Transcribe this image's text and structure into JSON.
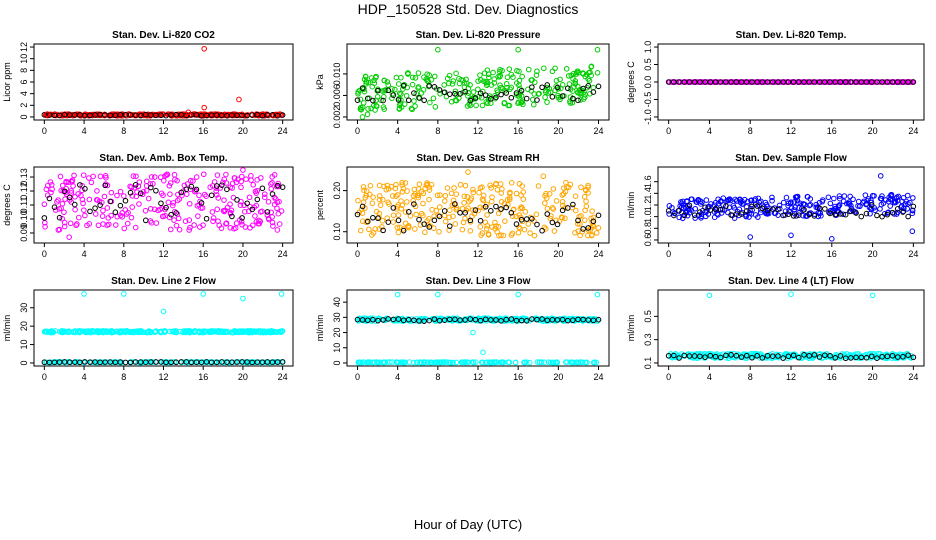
{
  "title": "HDP_150528  Std. Dev. Diagnostics",
  "xlabel_common": "Hour of Day (UTC)",
  "colors": {
    "red": "#ff0000",
    "green": "#00cc00",
    "magenta": "#ff00ff",
    "orange": "#ffa500",
    "blue": "#0000ff",
    "cyan": "#00ffff",
    "black": "#000000"
  },
  "chart_data": [
    {
      "type": "scatter",
      "title": "Stan. Dev. Li-820 CO2",
      "ylabel": "Licor ppm",
      "xlim": [
        0,
        24
      ],
      "xticks": [
        "0",
        "4",
        "8",
        "12",
        "16",
        "20",
        "24"
      ],
      "ylim": [
        0,
        12
      ],
      "yticks": [
        "0",
        "2",
        "4",
        "6",
        "8",
        "10",
        "12"
      ],
      "color": "#ff0000",
      "band": {
        "lo": 0.2,
        "hi": 0.5
      },
      "black_band": {
        "lo": 0.2,
        "hi": 0.4
      },
      "outliers": [
        [
          16.1,
          11.7
        ],
        [
          16.1,
          1.6
        ],
        [
          19.6,
          3.0
        ],
        [
          14.5,
          0.8
        ],
        [
          0.3,
          0.5
        ]
      ]
    },
    {
      "type": "scatter",
      "title": "Stan. Dev. Li-820 Pressure",
      "ylabel": "kPa",
      "xlim": [
        0,
        24
      ],
      "xticks": [
        "0",
        "4",
        "8",
        "12",
        "16",
        "20",
        "24"
      ],
      "ylim": [
        0.002,
        0.015
      ],
      "yticks": [
        "0.002",
        "0.006",
        "0.010"
      ],
      "ytick_values": [
        0.002,
        0.006,
        0.01
      ],
      "color": "#00cc00",
      "band": {
        "lo": 0.003,
        "hi": 0.01
      },
      "black_band": {
        "lo": 0.005,
        "hi": 0.008
      },
      "outliers": [
        [
          8.0,
          0.0145
        ],
        [
          16.0,
          0.0145
        ],
        [
          23.9,
          0.0145
        ],
        [
          0.5,
          0.002
        ],
        [
          1.0,
          0.0025
        ]
      ]
    },
    {
      "type": "scatter",
      "title": "Stan. Dev. Li-820 Temp.",
      "ylabel": "degrees C",
      "xlim": [
        0,
        24
      ],
      "xticks": [
        "0",
        "4",
        "8",
        "12",
        "16",
        "20",
        "24"
      ],
      "ylim": [
        -1,
        1
      ],
      "yticks": [
        "-1.0",
        "-0.5",
        "0.0",
        "0.5",
        "1.0"
      ],
      "ytick_values": [
        -1,
        -0.5,
        0,
        0.5,
        1
      ],
      "color": "#ff00ff",
      "band": {
        "lo": 0.0,
        "hi": 0.0
      },
      "black_band": {
        "lo": 0.0,
        "hi": 0.0
      },
      "outliers": []
    },
    {
      "type": "scatter",
      "title": "Stan. Dev. Amb. Box Temp.",
      "ylabel": "degrees C",
      "xlim": [
        0,
        24
      ],
      "xticks": [
        "0",
        "4",
        "8",
        "12",
        "16",
        "20",
        "24"
      ],
      "ylim": [
        0.085,
        0.135
      ],
      "yticks": [
        "0.09",
        "0.10",
        "0.11",
        "0.12",
        "0.13"
      ],
      "ytick_values": [
        0.09,
        0.1,
        0.11,
        0.12,
        0.13
      ],
      "color": "#ff00ff",
      "band": {
        "lo": 0.092,
        "hi": 0.132
      },
      "black_band": {
        "lo": 0.098,
        "hi": 0.125
      },
      "outliers": [
        [
          2.5,
          0.087
        ],
        [
          20.0,
          0.135
        ]
      ]
    },
    {
      "type": "scatter",
      "title": "Stan. Dev. Gas Stream RH",
      "ylabel": "percent",
      "xlim": [
        0,
        24
      ],
      "xticks": [
        "0",
        "4",
        "8",
        "12",
        "16",
        "20",
        "24"
      ],
      "ylim": [
        0.08,
        0.25
      ],
      "yticks": [
        "0.10",
        "0.20"
      ],
      "ytick_values": [
        0.1,
        0.2
      ],
      "color": "#ffa500",
      "band": {
        "lo": 0.09,
        "hi": 0.22
      },
      "black_band": {
        "lo": 0.1,
        "hi": 0.17
      },
      "outliers": [
        [
          11.0,
          0.245
        ],
        [
          18.5,
          0.235
        ]
      ]
    },
    {
      "type": "scatter",
      "title": "Stan. Dev. Sample Flow",
      "ylabel": "ml/min",
      "xlim": [
        0,
        24
      ],
      "xticks": [
        "0",
        "4",
        "8",
        "12",
        "16",
        "20",
        "24"
      ],
      "ylim": [
        0.6,
        1.8
      ],
      "yticks": [
        "0.6",
        "0.8",
        "1.0",
        "1.2",
        "1.4",
        "1.6"
      ],
      "ytick_values": [
        0.6,
        0.8,
        1.0,
        1.2,
        1.4,
        1.6
      ],
      "color": "#0000ff",
      "band": {
        "lo": 0.95,
        "hi": 1.3
      },
      "black_band": {
        "lo": 1.0,
        "hi": 1.2
      },
      "outliers": [
        [
          8.0,
          0.65
        ],
        [
          12.0,
          0.68
        ],
        [
          16.0,
          0.62
        ],
        [
          23.9,
          0.75
        ],
        [
          20.8,
          1.7
        ]
      ]
    },
    {
      "type": "scatter",
      "title": "Stan. Dev. Line 2 Flow",
      "ylabel": "ml/min",
      "xlim": [
        0,
        24
      ],
      "xticks": [
        "0",
        "4",
        "8",
        "12",
        "16",
        "20",
        "24"
      ],
      "ylim": [
        0,
        38
      ],
      "yticks": [
        "0",
        "10",
        "20",
        "30"
      ],
      "ytick_values": [
        0,
        10,
        20,
        30
      ],
      "color": "#00ffff",
      "band": {
        "lo": 16.5,
        "hi": 17.5
      },
      "black_band": {
        "lo": 0.3,
        "hi": 0.6
      },
      "baseline_band": {
        "lo": 0.2,
        "hi": 0.6
      },
      "outliers": [
        [
          4.0,
          37.5
        ],
        [
          8.0,
          37.5
        ],
        [
          12.0,
          28.0
        ],
        [
          16.0,
          37.5
        ],
        [
          20.0,
          35.0
        ],
        [
          23.9,
          37.5
        ]
      ]
    },
    {
      "type": "scatter",
      "title": "Stan. Dev. Line 3 Flow",
      "ylabel": "ml/min",
      "xlim": [
        0,
        24
      ],
      "xticks": [
        "0",
        "4",
        "8",
        "12",
        "16",
        "20",
        "24"
      ],
      "ylim": [
        0,
        46
      ],
      "yticks": [
        "0",
        "10",
        "20",
        "30",
        "40"
      ],
      "ytick_values": [
        0,
        10,
        20,
        30,
        40
      ],
      "color": "#00ffff",
      "band": {
        "lo": 27.5,
        "hi": 29.5
      },
      "black_band": {
        "lo": 27.5,
        "hi": 29.0
      },
      "baseline_band": {
        "lo": 0.2,
        "hi": 0.6
      },
      "outliers": [
        [
          4.0,
          45.0
        ],
        [
          8.0,
          45.0
        ],
        [
          12.5,
          7.0
        ],
        [
          16.0,
          45.0
        ],
        [
          23.9,
          45.0
        ],
        [
          11.5,
          20.0
        ]
      ]
    },
    {
      "type": "scatter",
      "title": "Stan. Dev. Line 4 (LT) Flow",
      "ylabel": "ml/min",
      "xlim": [
        0,
        24
      ],
      "xticks": [
        "0",
        "4",
        "8",
        "12",
        "16",
        "20",
        "24"
      ],
      "ylim": [
        0.1,
        0.7
      ],
      "yticks": [
        "0.1",
        "0.3",
        "0.5"
      ],
      "ytick_values": [
        0.1,
        0.3,
        0.5
      ],
      "color": "#00ffff",
      "band": {
        "lo": 0.14,
        "hi": 0.18
      },
      "black_band": {
        "lo": 0.14,
        "hi": 0.17
      },
      "outliers": [
        [
          4.0,
          0.68
        ],
        [
          12.0,
          0.69
        ],
        [
          20.0,
          0.68
        ]
      ]
    }
  ]
}
